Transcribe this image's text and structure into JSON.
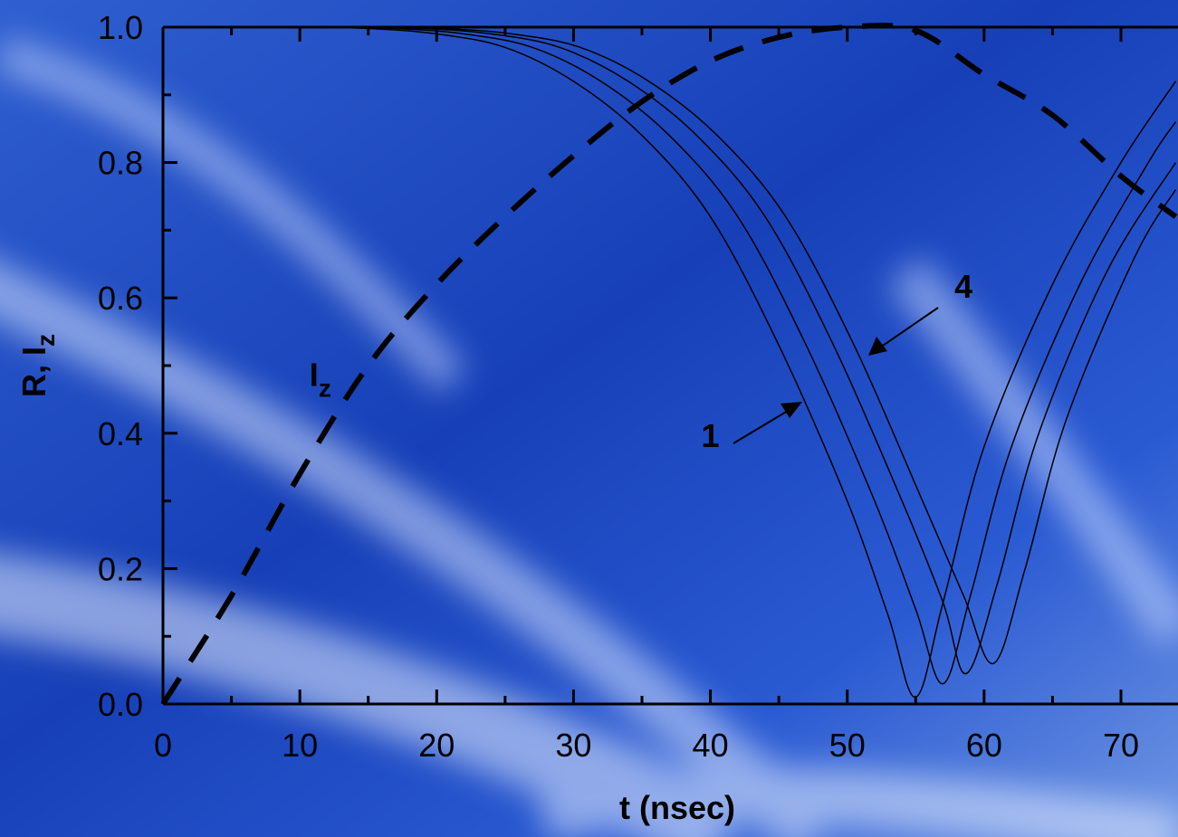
{
  "chart_data": {
    "type": "line",
    "xlabel": "t (nsec)",
    "ylabel": {
      "text": "R, I",
      "sub": "z"
    },
    "xlim": [
      0,
      74.2
    ],
    "ylim": [
      0,
      1
    ],
    "xticks": [
      0,
      10,
      20,
      30,
      40,
      50,
      60,
      70
    ],
    "xminorticks": [
      5,
      15,
      25,
      35,
      45,
      55,
      65
    ],
    "yticks": [
      {
        "value": 0,
        "label": "0.0"
      },
      {
        "value": 0.2,
        "label": "0.2"
      },
      {
        "value": 0.4,
        "label": "0.4"
      },
      {
        "value": 0.6,
        "label": "0.6"
      },
      {
        "value": 0.8,
        "label": "0.8"
      },
      {
        "value": 1,
        "label": "1.0"
      }
    ],
    "yminorticks": [
      0.1,
      0.3,
      0.5,
      0.7,
      0.9
    ],
    "annotations": [
      {
        "text": "1",
        "x": 40,
        "y": 0.38
      },
      {
        "text": "4",
        "x": 58.5,
        "y": 0.6
      },
      {
        "text": "I",
        "sub": "z",
        "x": 11.5,
        "y": 0.47
      }
    ],
    "series": [
      {
        "color": "#000000",
        "dashed": true,
        "width": 6,
        "x": [
          0,
          5,
          10,
          15,
          20,
          25,
          30,
          35,
          40,
          45,
          50,
          55,
          60,
          65,
          70,
          74
        ],
        "values": [
          0,
          0.16,
          0.34,
          0.5,
          0.62,
          0.72,
          0.81,
          0.89,
          0.95,
          0.985,
          1,
          0.995,
          0.93,
          0.87,
          0.78,
          0.72
        ]
      },
      {
        "color": "#000000",
        "width": 1.5,
        "x": [
          0,
          10,
          15,
          20,
          25,
          30,
          35,
          40,
          45,
          50,
          53,
          55,
          57,
          60,
          65,
          70,
          74
        ],
        "values": [
          1,
          1,
          0.998,
          0.99,
          0.97,
          0.92,
          0.84,
          0.72,
          0.53,
          0.3,
          0.13,
          0.01,
          0.15,
          0.38,
          0.62,
          0.8,
          0.92
        ]
      },
      {
        "color": "#000000",
        "width": 1.5,
        "x": [
          0,
          12,
          17,
          22,
          27,
          32,
          37,
          42,
          47,
          52,
          55,
          57,
          59,
          62,
          67,
          72,
          74
        ],
        "values": [
          1,
          1,
          0.998,
          0.99,
          0.97,
          0.92,
          0.84,
          0.72,
          0.53,
          0.3,
          0.14,
          0.03,
          0.16,
          0.38,
          0.62,
          0.8,
          0.86
        ]
      },
      {
        "color": "#000000",
        "width": 1.5,
        "x": [
          0,
          14,
          19,
          24,
          29,
          34,
          39,
          44,
          49,
          54,
          57,
          58.7,
          61,
          64,
          69,
          74
        ],
        "values": [
          1,
          1,
          0.998,
          0.99,
          0.97,
          0.92,
          0.84,
          0.72,
          0.53,
          0.3,
          0.15,
          0.045,
          0.18,
          0.4,
          0.64,
          0.8
        ]
      },
      {
        "color": "#000000",
        "width": 1.5,
        "x": [
          0,
          15.5,
          20.5,
          25.5,
          30.5,
          35.5,
          40.5,
          45.5,
          50.5,
          55.5,
          58.5,
          60.7,
          63,
          66,
          71,
          74
        ],
        "values": [
          1,
          1,
          0.998,
          0.99,
          0.97,
          0.92,
          0.84,
          0.72,
          0.53,
          0.3,
          0.16,
          0.06,
          0.2,
          0.42,
          0.66,
          0.76
        ]
      }
    ]
  }
}
